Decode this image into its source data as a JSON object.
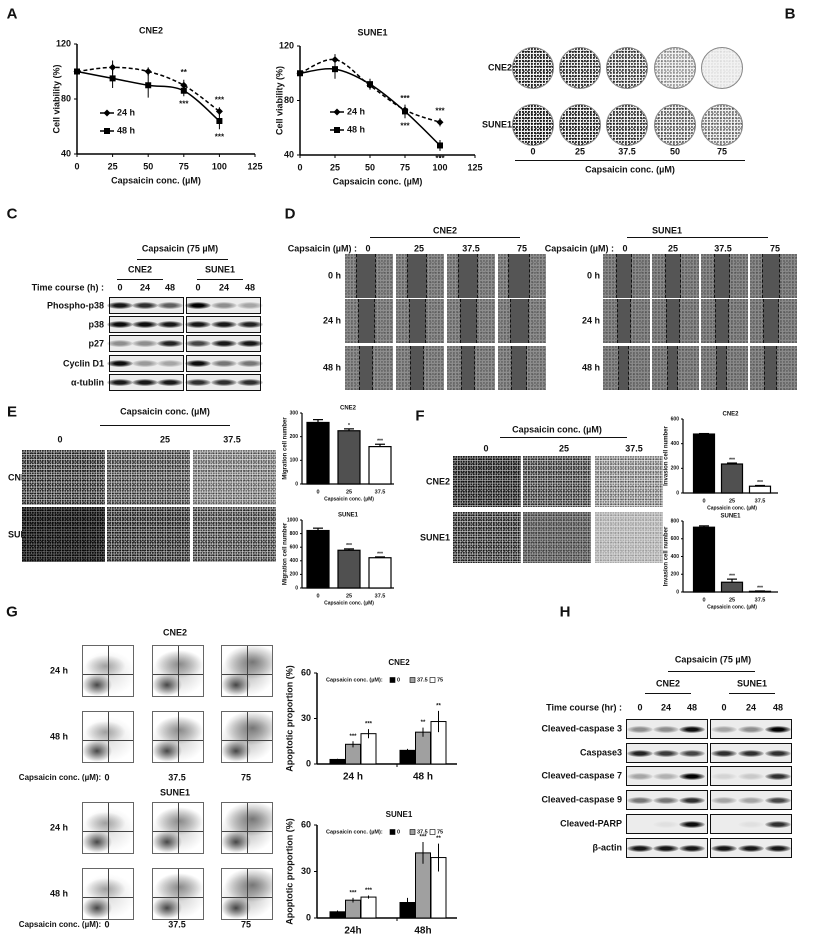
{
  "panel_labels": [
    "A",
    "B",
    "C",
    "D",
    "E",
    "F",
    "G",
    "H"
  ],
  "panel_b": {
    "cell_lines": [
      "CNE2",
      "SUNE1"
    ],
    "concentrations": [
      "0",
      "25",
      "37.5",
      "50",
      "75"
    ],
    "xlabel": "Capsaicin conc. (µM)"
  },
  "panel_c": {
    "treatment": "Capsaicin (75 µM)",
    "cell_lines": [
      "CNE2",
      "SUNE1"
    ],
    "time_label": "Time course (h) :",
    "times": [
      "0",
      "24",
      "48"
    ],
    "rows": [
      {
        "label": "Phospho-p38",
        "band_intensity": {
          "CNE2": [
            0.9,
            0.8,
            0.6
          ],
          "SUNE1": [
            1,
            0.4,
            0.3
          ]
        }
      },
      {
        "label": "p38",
        "band_intensity": {
          "CNE2": [
            0.95,
            0.95,
            0.9
          ],
          "SUNE1": [
            0.9,
            0.9,
            0.85
          ]
        }
      },
      {
        "label": "p27",
        "band_intensity": {
          "CNE2": [
            0.4,
            0.4,
            0.85
          ],
          "SUNE1": [
            0.7,
            0.9,
            0.9
          ]
        }
      },
      {
        "label": "Cyclin D1",
        "band_intensity": {
          "CNE2": [
            0.95,
            0.35,
            0.3
          ],
          "SUNE1": [
            0.95,
            0.5,
            0.5
          ]
        }
      },
      {
        "label": "α-tublin",
        "band_intensity": {
          "CNE2": [
            0.9,
            0.9,
            0.9
          ],
          "SUNE1": [
            0.8,
            0.8,
            0.8
          ]
        }
      }
    ]
  },
  "panel_d": {
    "cell_lines": [
      "CNE2",
      "SUNE1"
    ],
    "conc_label": "Capsaicin (µM) :",
    "concentrations": [
      "0",
      "25",
      "37.5",
      "75"
    ],
    "times": [
      "0 h",
      "24 h",
      "48 h"
    ]
  },
  "panel_e": {
    "header": "Capsaicin conc. (µM)",
    "concentrations": [
      "0",
      "25",
      "37.5"
    ],
    "cell_lines": [
      "CNE2",
      "SUNE1"
    ]
  },
  "panel_f": {
    "header": "Capsaicin conc. (µM)",
    "concentrations": [
      "0",
      "25",
      "37.5"
    ],
    "cell_lines": [
      "CNE2",
      "SUNE1"
    ]
  },
  "panel_g": {
    "cell_lines": [
      "CNE2",
      "SUNE1"
    ],
    "times": [
      "24 h",
      "48 h"
    ],
    "conc_label": "Capsaicin conc. (µM):",
    "concentrations": [
      "0",
      "37.5",
      "75"
    ]
  },
  "panel_h": {
    "treatment": "Capsaicin (75 µM)",
    "cell_lines": [
      "CNE2",
      "SUNE1"
    ],
    "time_label": "Time course (hr) :",
    "times": [
      "0",
      "24",
      "48"
    ],
    "rows": [
      {
        "label": "Cleaved-caspase 3",
        "band_intensity": {
          "CNE2": [
            0.4,
            0.4,
            0.95
          ],
          "SUNE1": [
            0.3,
            0.4,
            1
          ]
        }
      },
      {
        "label": "Caspase3",
        "band_intensity": {
          "CNE2": [
            0.85,
            0.75,
            0.7
          ],
          "SUNE1": [
            0.8,
            0.8,
            0.8
          ]
        }
      },
      {
        "label": "Cleaved-caspase 7",
        "band_intensity": {
          "CNE2": [
            0.3,
            0.25,
            1
          ],
          "SUNE1": [
            0.1,
            0.15,
            0.8
          ]
        }
      },
      {
        "label": "Cleaved-caspase 9",
        "band_intensity": {
          "CNE2": [
            0.5,
            0.5,
            0.8
          ],
          "SUNE1": [
            0.3,
            0.3,
            0.7
          ]
        }
      },
      {
        "label": "Cleaved-PARP",
        "band_intensity": {
          "CNE2": [
            0,
            0.05,
            0.95
          ],
          "SUNE1": [
            0,
            0.05,
            0.8
          ]
        }
      },
      {
        "label": "β-actin",
        "band_intensity": {
          "CNE2": [
            0.9,
            0.9,
            0.9
          ],
          "SUNE1": [
            0.9,
            0.9,
            0.9
          ]
        }
      }
    ]
  },
  "chart_data": [
    {
      "type": "line",
      "title": "CNE2",
      "xlabel": "Capsaicin conc.  (µM)",
      "ylabel": "Cell viability (%)",
      "xlim": [
        0,
        125
      ],
      "ylim": [
        40,
        120
      ],
      "xticks": [
        0,
        25,
        50,
        75,
        100,
        125
      ],
      "yticks": [
        40,
        80,
        120
      ],
      "legend": "left",
      "x": [
        0,
        25,
        50,
        75,
        100
      ],
      "series": [
        {
          "name": "24 h",
          "values": [
            100,
            103,
            100,
            90,
            71
          ],
          "errors": [
            0,
            5,
            3,
            4,
            3
          ],
          "marker": "diamond",
          "dash": true,
          "significance": [
            "",
            "",
            "",
            "**",
            "***"
          ]
        },
        {
          "name": "48 h",
          "values": [
            100,
            95,
            90,
            86,
            64
          ],
          "errors": [
            0,
            7,
            9,
            4,
            6
          ],
          "marker": "square",
          "dash": false,
          "significance": [
            "",
            "",
            "",
            "***",
            "***"
          ]
        }
      ]
    },
    {
      "type": "line",
      "title": "SUNE1",
      "xlabel": "Capsaicin conc.  (µM)",
      "ylabel": "Cell viability (%)",
      "xlim": [
        0,
        125
      ],
      "ylim": [
        40,
        120
      ],
      "xticks": [
        0,
        25,
        50,
        75,
        100,
        125
      ],
      "yticks": [
        40,
        80,
        120
      ],
      "legend": "left",
      "x": [
        0,
        25,
        50,
        75,
        100
      ],
      "series": [
        {
          "name": "24 h",
          "values": [
            100,
            110,
            91,
            73,
            64
          ],
          "errors": [
            0,
            4,
            3,
            3,
            3
          ],
          "marker": "diamond",
          "dash": true,
          "significance": [
            "",
            "",
            "",
            "***",
            "***"
          ]
        },
        {
          "name": "48 h",
          "values": [
            100,
            103,
            92,
            72,
            47
          ],
          "errors": [
            0,
            7,
            4,
            5,
            4
          ],
          "marker": "square",
          "dash": false,
          "significance": [
            "",
            "",
            "",
            "***",
            "***"
          ]
        }
      ]
    },
    {
      "type": "bar",
      "title": "CNE2",
      "xlabel": "Capsaicin conc. (µM)",
      "ylabel": "Migration cell number",
      "categories": [
        "0",
        "25",
        "37.5"
      ],
      "values": [
        260,
        225,
        158
      ],
      "errors": [
        12,
        8,
        10
      ],
      "significance": [
        "",
        "*",
        "***"
      ],
      "colors": [
        "#000000",
        "#505050",
        "#ffffff"
      ],
      "ylim": [
        0,
        300
      ],
      "yticks": [
        0,
        100,
        200,
        300
      ]
    },
    {
      "type": "bar",
      "title": "SUNE1",
      "xlabel": "Capsaicin conc. (µM)",
      "ylabel": "Migration cell number",
      "categories": [
        "0",
        "25",
        "37.5"
      ],
      "values": [
        845,
        555,
        445
      ],
      "errors": [
        35,
        20,
        12
      ],
      "significance": [
        "",
        "***",
        "***"
      ],
      "colors": [
        "#000000",
        "#505050",
        "#ffffff"
      ],
      "ylim": [
        0,
        1000
      ],
      "yticks": [
        0,
        200,
        400,
        600,
        800,
        1000
      ]
    },
    {
      "type": "bar",
      "title": "CNE2",
      "xlabel": "Capsaicin conc. (µM)",
      "ylabel": "Invasion cell number",
      "categories": [
        "0",
        "25",
        "37.5"
      ],
      "values": [
        478,
        235,
        55
      ],
      "errors": [
        4,
        8,
        6
      ],
      "significance": [
        "",
        "***",
        "***"
      ],
      "colors": [
        "#000000",
        "#505050",
        "#ffffff"
      ],
      "ylim": [
        0,
        600
      ],
      "yticks": [
        0,
        200,
        400,
        600
      ]
    },
    {
      "type": "bar",
      "title": "SUNE1",
      "xlabel": "Capsaicin conc. (µM)",
      "ylabel": "Invasion cell number",
      "categories": [
        "0",
        "25",
        "37.5"
      ],
      "values": [
        730,
        110,
        8
      ],
      "errors": [
        15,
        35,
        4
      ],
      "significance": [
        "",
        "***",
        "***"
      ],
      "colors": [
        "#000000",
        "#505050",
        "#ffffff"
      ],
      "ylim": [
        0,
        800
      ],
      "yticks": [
        0,
        200,
        400,
        600,
        800
      ]
    },
    {
      "type": "bar",
      "title": "CNE2",
      "ylabel": "Apoptotic proportion (%)",
      "legend_label": "Capsaicin conc.  (µM):",
      "categories": [
        "24 h",
        "48 h"
      ],
      "ylim": [
        0,
        60
      ],
      "yticks": [
        0,
        30,
        60
      ],
      "legend": "top",
      "series": [
        {
          "name": "0",
          "values": [
            3,
            9
          ],
          "errors": [
            0.5,
            1
          ],
          "color": "#000000",
          "significance": [
            "",
            ""
          ]
        },
        {
          "name": "37.5",
          "values": [
            13,
            21
          ],
          "errors": [
            2,
            3
          ],
          "color": "#a0a0a0",
          "significance": [
            "***",
            "**"
          ]
        },
        {
          "name": "75",
          "values": [
            20,
            28
          ],
          "errors": [
            3,
            7
          ],
          "color": "#ffffff",
          "significance": [
            "***",
            "**"
          ]
        }
      ]
    },
    {
      "type": "bar",
      "title": "SUNE1",
      "ylabel": "Apoptotic proportion (%)",
      "legend_label": "Capsaicin conc. (µM):",
      "categories": [
        "24h",
        "48h"
      ],
      "ylim": [
        0,
        60
      ],
      "yticks": [
        0,
        30,
        60
      ],
      "legend": "top",
      "series": [
        {
          "name": "0",
          "values": [
            4,
            10
          ],
          "errors": [
            0.8,
            3
          ],
          "color": "#000000",
          "significance": [
            "",
            ""
          ]
        },
        {
          "name": "37.5",
          "values": [
            11.5,
            42
          ],
          "errors": [
            1.5,
            7
          ],
          "color": "#a0a0a0",
          "significance": [
            "***",
            "***"
          ]
        },
        {
          "name": "75",
          "values": [
            13.5,
            39
          ],
          "errors": [
            1,
            9
          ],
          "color": "#ffffff",
          "significance": [
            "***",
            "**"
          ]
        }
      ]
    }
  ]
}
